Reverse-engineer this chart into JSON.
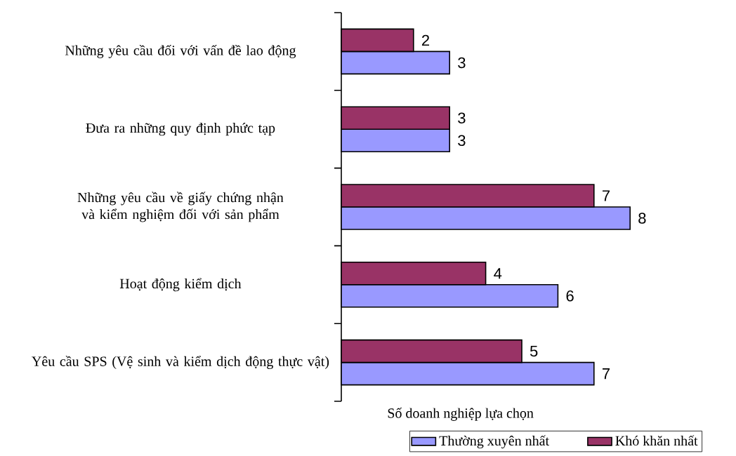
{
  "chart_data": {
    "type": "bar",
    "orientation": "horizontal",
    "xlabel": "Số doanh nghiệp lựa chọn",
    "categories": [
      "Những yêu cầu đối với vấn đề lao động",
      "Đưa ra những quy định phức tạp",
      "Những yêu cầu về giấy chứng nhận và kiểm nghiệm đối với sản phẩm",
      "Hoạt động kiểm dịch",
      "Yêu cầu SPS (Vệ sinh và kiểm dịch động thực vật)"
    ],
    "series": [
      {
        "name": "Thường xuyên nhất",
        "color": "#9999ff",
        "values": [
          3,
          3,
          8,
          6,
          7
        ]
      },
      {
        "name": "Khó khăn nhất",
        "color": "#993366",
        "values": [
          2,
          3,
          7,
          4,
          5
        ]
      }
    ],
    "data_labels": true,
    "legend": "bottom"
  }
}
